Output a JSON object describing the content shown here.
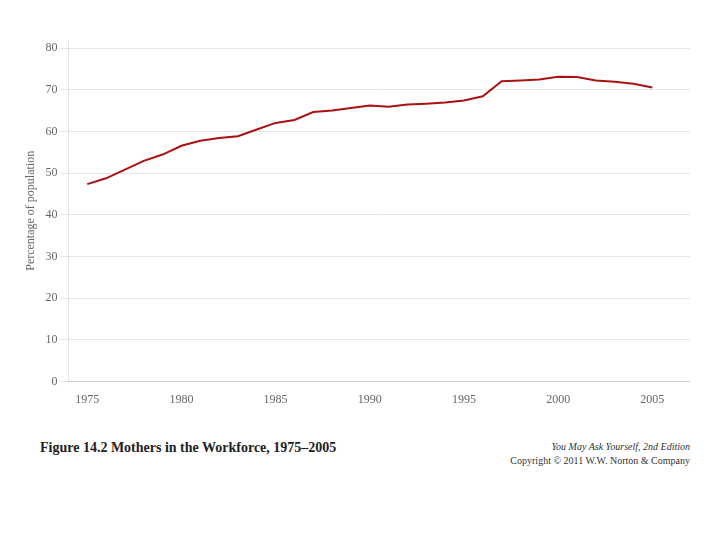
{
  "chart_data": {
    "type": "line",
    "x": [
      1975,
      1976,
      1977,
      1978,
      1979,
      1980,
      1981,
      1982,
      1983,
      1984,
      1985,
      1986,
      1987,
      1988,
      1989,
      1990,
      1991,
      1992,
      1993,
      1994,
      1995,
      1996,
      1997,
      1998,
      1999,
      2000,
      2001,
      2002,
      2003,
      2004,
      2005
    ],
    "values": [
      47.4,
      48.8,
      50.9,
      53.0,
      54.5,
      56.6,
      57.8,
      58.5,
      58.9,
      60.5,
      62.1,
      62.8,
      64.7,
      65.1,
      65.7,
      66.3,
      66.0,
      66.5,
      66.7,
      67.0,
      67.5,
      68.5,
      72.1,
      72.3,
      72.5,
      73.2,
      73.1,
      72.3,
      72.0,
      71.5,
      70.6
    ],
    "color": "#aa1111",
    "y_label": "Percentage of population",
    "xlim": [
      1974,
      2007
    ],
    "xticks": [
      1975,
      1980,
      1985,
      1990,
      1995,
      2000,
      2005
    ],
    "ylim": [
      0,
      82
    ],
    "yticks": [
      0,
      10,
      20,
      30,
      40,
      50,
      60,
      70,
      80
    ],
    "grid": "y",
    "annotations": [
      "Figure 14.2 Mothers in the Workforce, 1975–2005",
      "You May Ask Yourself, 2nd Edition",
      "Copyright © 2011  W.W. Norton & Company"
    ]
  }
}
